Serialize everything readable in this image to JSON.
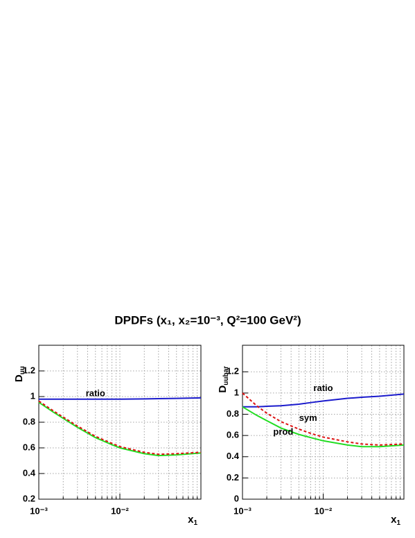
{
  "title": "DPDFs (x₁, x₂=10⁻³, Q²=100 GeV²)",
  "chart_data": [
    {
      "type": "line",
      "ylabel": "D",
      "ylabel_sub": "uu",
      "xlabel": "x",
      "xlabel_sub": "1",
      "xscale": "log",
      "xlim": [
        0.001,
        0.1
      ],
      "ylim": [
        0.2,
        1.4
      ],
      "xticks": [
        {
          "value": 0.001,
          "label": "10⁻³"
        },
        {
          "value": 0.01,
          "label": "10⁻²"
        }
      ],
      "xminor": [
        0.002,
        0.003,
        0.004,
        0.005,
        0.006,
        0.007,
        0.008,
        0.009,
        0.02,
        0.03,
        0.04,
        0.05,
        0.06,
        0.07,
        0.08,
        0.09
      ],
      "yticks": [
        0.2,
        0.4,
        0.6,
        0.8,
        1,
        1.2
      ],
      "grid": true,
      "x": [
        0.001,
        0.0015,
        0.002,
        0.003,
        0.005,
        0.007,
        0.01,
        0.02,
        0.03,
        0.05,
        0.1
      ],
      "series": [
        {
          "color": "#1a1acc",
          "dash": false,
          "values": [
            0.98,
            0.98,
            0.98,
            0.98,
            0.98,
            0.98,
            0.98,
            0.982,
            0.984,
            0.986,
            0.99
          ]
        },
        {
          "color": "#22dd22",
          "dash": false,
          "values": [
            0.955,
            0.88,
            0.83,
            0.76,
            0.68,
            0.64,
            0.6,
            0.555,
            0.54,
            0.545,
            0.56
          ]
        },
        {
          "color": "#dd1111",
          "dash": true,
          "values": [
            0.965,
            0.89,
            0.84,
            0.77,
            0.69,
            0.65,
            0.61,
            0.565,
            0.55,
            0.555,
            0.565
          ]
        }
      ],
      "annotations": [
        {
          "text": "ratio",
          "x": 0.005,
          "y": 1.02
        }
      ]
    },
    {
      "type": "line",
      "ylabel": "D",
      "ylabel_sub": "uubar",
      "xlabel": "x",
      "xlabel_sub": "1",
      "xscale": "log",
      "xlim": [
        0.001,
        0.1
      ],
      "ylim": [
        0,
        1.45
      ],
      "xticks": [
        {
          "value": 0.001,
          "label": "10⁻³"
        },
        {
          "value": 0.01,
          "label": "10⁻²"
        }
      ],
      "xminor": [
        0.002,
        0.003,
        0.004,
        0.005,
        0.006,
        0.007,
        0.008,
        0.009,
        0.02,
        0.03,
        0.04,
        0.05,
        0.06,
        0.07,
        0.08,
        0.09
      ],
      "yticks": [
        0,
        0.2,
        0.4,
        0.6,
        0.8,
        1,
        1.2
      ],
      "grid": true,
      "x": [
        0.001,
        0.0015,
        0.002,
        0.003,
        0.005,
        0.007,
        0.01,
        0.02,
        0.03,
        0.05,
        0.1
      ],
      "series": [
        {
          "color": "#1a1acc",
          "dash": false,
          "values": [
            0.87,
            0.87,
            0.875,
            0.88,
            0.895,
            0.91,
            0.925,
            0.95,
            0.96,
            0.97,
            0.99
          ]
        },
        {
          "color": "#22dd22",
          "dash": false,
          "values": [
            0.87,
            0.79,
            0.74,
            0.67,
            0.61,
            0.58,
            0.55,
            0.51,
            0.495,
            0.495,
            0.51
          ]
        },
        {
          "color": "#dd1111",
          "dash": true,
          "values": [
            1.0,
            0.88,
            0.81,
            0.73,
            0.66,
            0.62,
            0.585,
            0.54,
            0.52,
            0.51,
            0.52
          ]
        }
      ],
      "annotations": [
        {
          "text": "ratio",
          "x": 0.01,
          "y": 1.04
        },
        {
          "text": "sym",
          "x": 0.0065,
          "y": 0.76
        },
        {
          "text": "prod",
          "x": 0.0032,
          "y": 0.63
        }
      ]
    }
  ]
}
